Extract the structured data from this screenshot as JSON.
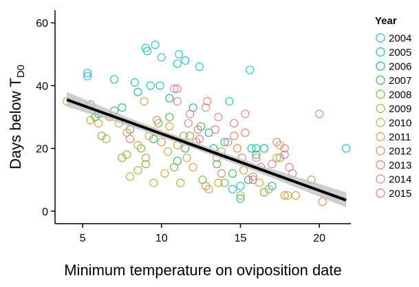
{
  "chart_data": {
    "type": "scatter",
    "xlabel": "Minimum temperature on oviposition date",
    "ylabel": "Days below T",
    "ylabel_subscript": "D0",
    "xlim": [
      3.25,
      22
    ],
    "ylim": [
      -4,
      64
    ],
    "xticks": [
      5,
      10,
      15,
      20
    ],
    "yticks": [
      0,
      20,
      40,
      60
    ],
    "legend_title": "Year",
    "legend_position": "right",
    "fit": {
      "x": [
        4,
        21.7
      ],
      "values": [
        35.5,
        3.5
      ],
      "color": "#000000"
    },
    "band": {
      "x": [
        4,
        8,
        12,
        16,
        21.7
      ],
      "lower": [
        33.3,
        27,
        20,
        12.6,
        1.2
      ],
      "upper": [
        38,
        29.6,
        22.1,
        15,
        6
      ],
      "color": "#bdbdbd"
    },
    "series": [
      {
        "name": "2004",
        "color": "#1fbfc8",
        "x": [
          5.3,
          5.3,
          9,
          9.6,
          9.1,
          11.1,
          11.5,
          11,
          12.4,
          15.6,
          21.7,
          15,
          14.5
        ],
        "values": [
          44,
          43,
          52,
          53,
          51,
          50,
          48,
          47,
          46,
          45,
          20,
          8,
          7
        ]
      },
      {
        "name": "2005",
        "color": "#1cbfaa",
        "x": [
          10,
          9.3,
          9.9,
          8.3,
          7,
          14.3,
          15.7,
          16,
          13.3,
          15
        ],
        "values": [
          49,
          40,
          40,
          41,
          42,
          35,
          20,
          20,
          20,
          4
        ]
      },
      {
        "name": "2006",
        "color": "#1db58a",
        "x": [
          6,
          7.5,
          8.5,
          10.5,
          12,
          13,
          14,
          15.5,
          16.5,
          17,
          11
        ],
        "values": [
          31,
          33,
          38,
          36,
          33,
          25,
          22,
          10,
          20,
          8,
          16
        ]
      },
      {
        "name": "2007",
        "color": "#3db85c",
        "x": [
          5.8,
          7,
          8,
          9.5,
          10.5,
          12.5,
          13.5,
          14.5,
          16,
          11.5
        ],
        "values": [
          30,
          32,
          26,
          23,
          30,
          27,
          15,
          12,
          18,
          20
        ]
      },
      {
        "name": "2008",
        "color": "#6fba3a",
        "x": [
          6.2,
          7.5,
          8.7,
          9.8,
          10.8,
          11.8,
          12.6,
          14,
          16.5,
          17.5,
          9
        ],
        "values": [
          24,
          17,
          20,
          28,
          14,
          24,
          10,
          9,
          6,
          17,
          15
        ]
      },
      {
        "name": "2009",
        "color": "#a0b53a",
        "x": [
          5.5,
          6.5,
          7.8,
          8.5,
          9.5,
          10.4,
          11.2,
          13,
          15,
          16.8,
          19.5
        ],
        "values": [
          29,
          23,
          18,
          13,
          9,
          19,
          9,
          7,
          5,
          7,
          10
        ]
      },
      {
        "name": "2010",
        "color": "#c1aa3a",
        "x": [
          4,
          6,
          7.3,
          8.5,
          9.2,
          10.2,
          11.6,
          12.2,
          13.8,
          17.5,
          18
        ],
        "values": [
          35,
          28,
          28,
          21,
          24,
          12,
          17,
          22,
          19,
          21,
          5
        ]
      },
      {
        "name": "2011",
        "color": "#d6a03a",
        "x": [
          6.7,
          8,
          8.9,
          10.5,
          11,
          12,
          13.6,
          15.2,
          16.2,
          18.5,
          17.3
        ],
        "values": [
          30,
          11,
          35,
          27,
          21,
          14,
          9,
          13,
          9,
          5,
          17
        ]
      },
      {
        "name": "2012",
        "color": "#e18d48",
        "x": [
          5.5,
          7.8,
          9,
          10,
          11.4,
          12.8,
          13.5,
          14.8,
          15.8,
          17.8,
          20.2
        ],
        "values": [
          34,
          25,
          17,
          22,
          24,
          8,
          17,
          20,
          11,
          5,
          3
        ]
      },
      {
        "name": "2013",
        "color": "#e8806a",
        "x": [
          8,
          9.7,
          11,
          12.3,
          12.9,
          13.8,
          14.6,
          15.3,
          16.3,
          17.8
        ],
        "values": [
          23,
          29,
          35,
          26,
          35,
          12,
          24,
          25,
          14,
          20
        ]
      },
      {
        "name": "2014",
        "color": "#e57e8a",
        "x": [
          10.8,
          11.8,
          12.8,
          13.6,
          14.2,
          15.3,
          16,
          17.3,
          18.1,
          20
        ],
        "values": [
          39,
          31,
          33,
          30,
          22,
          31,
          17,
          22,
          14,
          31
        ]
      },
      {
        "name": "2015",
        "color": "#e36fb0",
        "x": [
          11,
          11.7,
          12.4,
          13.4,
          14.6,
          15.1,
          15.8,
          17,
          17.8,
          18.3
        ],
        "values": [
          39,
          28,
          23,
          26,
          28,
          17,
          10,
          15,
          18,
          12
        ]
      }
    ]
  }
}
